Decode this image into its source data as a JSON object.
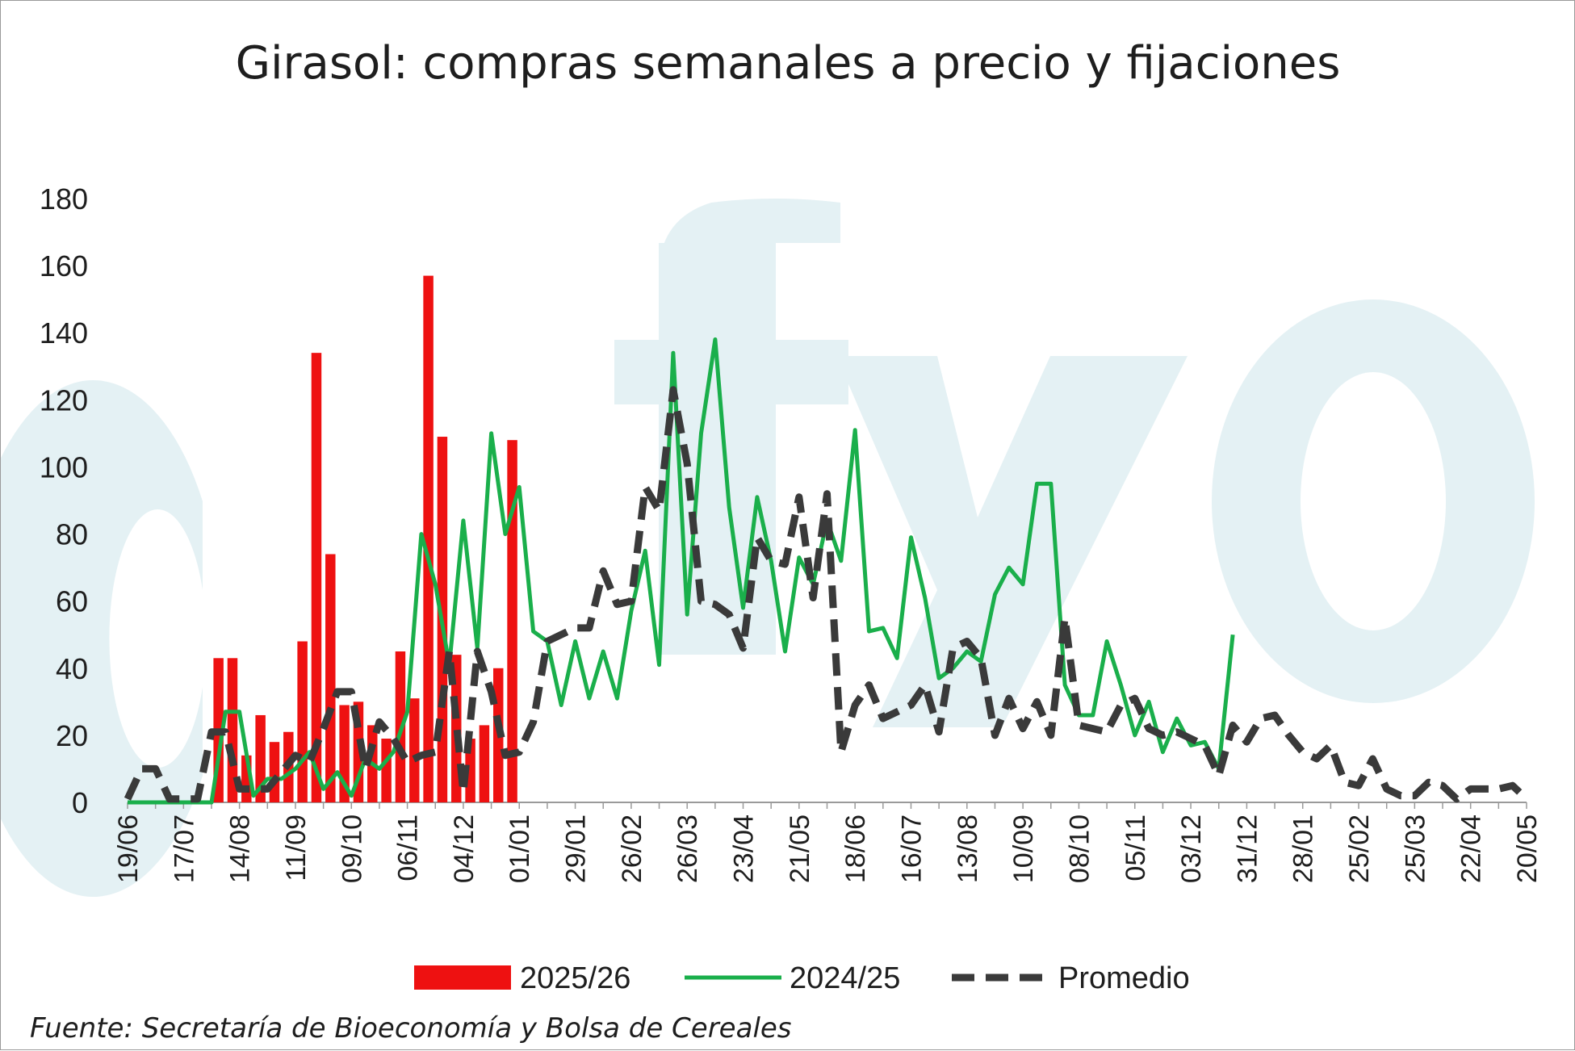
{
  "chart_data": {
    "type": "bar+line",
    "title": "Girasol: compras semanales a precio y fijaciones",
    "xlabel": "",
    "ylabel": "",
    "ylim": [
      0,
      180
    ],
    "yticks": [
      "0",
      "20",
      "40",
      "60",
      "80",
      "100",
      "120",
      "140",
      "160",
      "180"
    ],
    "xticks": [
      "19/06",
      "17/07",
      "14/08",
      "11/09",
      "09/10",
      "06/11",
      "04/12",
      "01/01",
      "29/01",
      "26/02",
      "26/03",
      "23/04",
      "21/05",
      "18/06",
      "16/07",
      "13/08",
      "10/09",
      "08/10",
      "05/11",
      "03/12",
      "31/12",
      "28/01",
      "25/02",
      "25/03",
      "22/04",
      "20/05"
    ],
    "xtick_week_index": [
      0,
      4,
      8,
      12,
      16,
      20,
      24,
      28,
      32,
      36,
      40,
      44,
      48,
      52,
      56,
      60,
      64,
      68,
      72,
      76,
      80,
      84,
      88,
      92,
      96,
      100
    ],
    "series": [
      {
        "name": "2025/26",
        "kind": "bar",
        "color": "#ee1111",
        "start_week": 6,
        "values": [
          43,
          43,
          14,
          26,
          18,
          21,
          48,
          134,
          74,
          29,
          30,
          23,
          19,
          45,
          31,
          157,
          109,
          44,
          19,
          23,
          40,
          108
        ]
      },
      {
        "name": "2024/25",
        "kind": "line",
        "color": "#1aaf4b",
        "start_week": 0,
        "values": [
          0,
          0,
          0,
          0,
          0,
          0,
          0,
          27,
          27,
          2,
          7,
          7,
          10,
          15,
          4,
          9,
          2,
          13,
          10,
          15,
          27,
          80,
          65,
          41,
          84,
          46,
          110,
          80,
          94,
          51,
          48,
          29,
          48,
          31,
          45,
          31,
          57,
          75,
          41,
          134,
          56,
          110,
          138,
          88,
          58,
          91,
          72,
          45,
          73,
          65,
          84,
          72,
          111,
          51,
          52,
          43,
          79,
          61,
          37,
          40,
          45,
          42,
          62,
          70,
          65,
          95,
          95,
          35,
          26,
          26,
          48,
          35,
          20,
          30,
          15,
          25,
          17,
          18,
          10,
          50
        ]
      },
      {
        "name": "Promedio",
        "kind": "dashed-line",
        "color": "#3a3a3a",
        "start_week": 0,
        "values": [
          1,
          10,
          10,
          1,
          1,
          1,
          21,
          21,
          4,
          4,
          4,
          9,
          14,
          12,
          22,
          33,
          33,
          10,
          24,
          19,
          12,
          14,
          15,
          45,
          3,
          45,
          33,
          14,
          15,
          24,
          48,
          50,
          52,
          52,
          69,
          59,
          60,
          94,
          87,
          123,
          101,
          60,
          59,
          56,
          46,
          79,
          72,
          71,
          91,
          61,
          92,
          15,
          29,
          35,
          25,
          27,
          29,
          35,
          21,
          46,
          48,
          43,
          20,
          31,
          22,
          30,
          20,
          55,
          23,
          22,
          21,
          29,
          31,
          22,
          20,
          21,
          19,
          17,
          8,
          23,
          18,
          25,
          26,
          20,
          15,
          13,
          17,
          6,
          5,
          13,
          4,
          2,
          2,
          6,
          5,
          1,
          4,
          4,
          4,
          5,
          1
        ]
      }
    ],
    "legend": {
      "placement": "bottom",
      "entries": [
        "2025/26",
        "2024/25",
        "Promedio"
      ]
    },
    "grid": false,
    "watermark": "fyo-logo"
  },
  "source_note": "Fuente: Secretaría de Bioeconomía y Bolsa de Cereales"
}
